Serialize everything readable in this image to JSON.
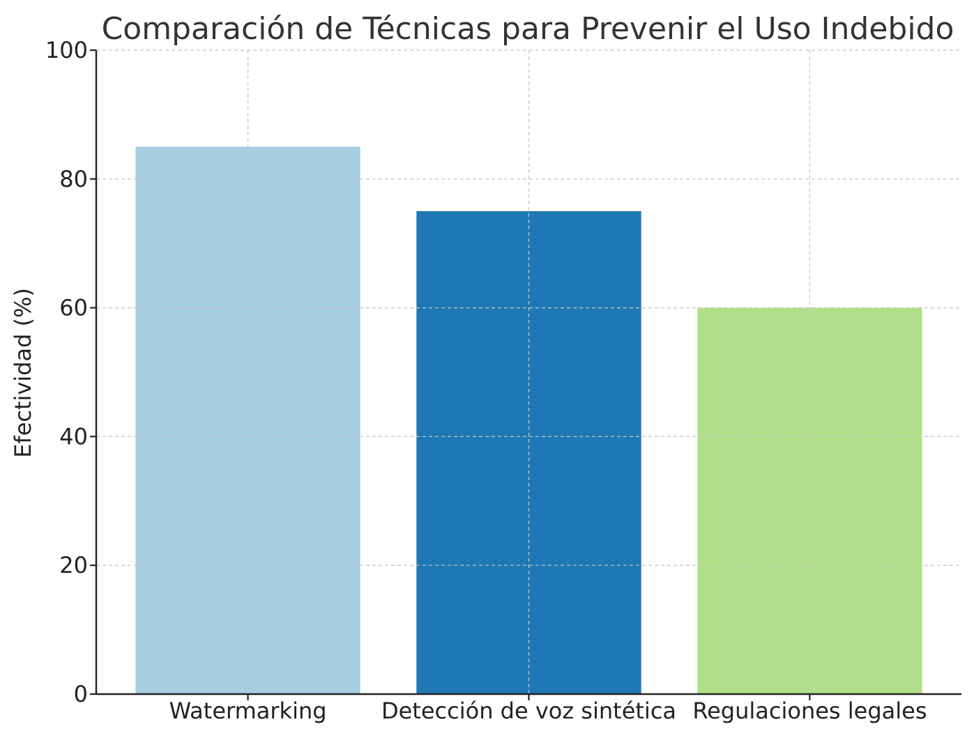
{
  "chart_data": {
    "type": "bar",
    "title": "Comparación de Técnicas para Prevenir el Uso Indebido",
    "xlabel": "",
    "ylabel": "Efectividad (%)",
    "categories": [
      "Watermarking",
      "Detección de voz sintética",
      "Regulaciones legales"
    ],
    "values": [
      85,
      75,
      60
    ],
    "colors": [
      "#a6cee3",
      "#1f78b4",
      "#b2df8a"
    ],
    "ylim": [
      0,
      100
    ],
    "yticks": [
      0,
      20,
      40,
      60,
      80,
      100
    ],
    "grid": true,
    "legend": "none"
  }
}
